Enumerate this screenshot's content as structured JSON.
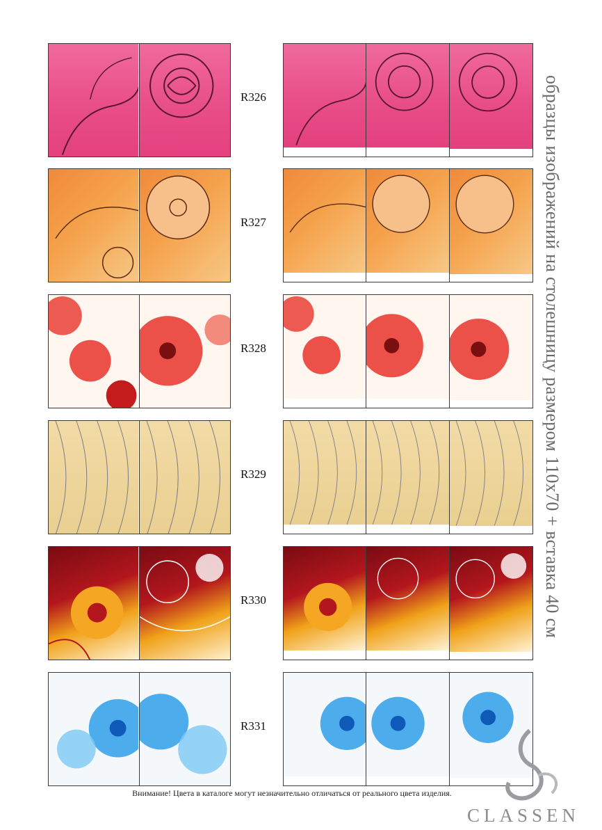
{
  "heading_vertical": "образцы изображений на столешницу размером 110х70 + вставка 40 см",
  "rows": [
    {
      "code": "R326",
      "theme": "pink-rose-sketch",
      "colors": {
        "primary": "#e84e88",
        "line": "#5a1630"
      }
    },
    {
      "code": "R327",
      "theme": "orange-flower-sketch",
      "colors": {
        "primary": "#f08a3a",
        "line": "#5a2a10"
      }
    },
    {
      "code": "R328",
      "theme": "red-poppies-on-white",
      "colors": {
        "primary": "#e8332b",
        "line": "#7a0f0f"
      }
    },
    {
      "code": "R329",
      "theme": "beige-leaf-pattern",
      "colors": {
        "primary": "#e9cf90",
        "line": "#7d7a88"
      }
    },
    {
      "code": "R330",
      "theme": "burgundy-orange-floral-ornament",
      "colors": {
        "primary": "#b3161d",
        "line": "#ffffff"
      }
    },
    {
      "code": "R331",
      "theme": "blue-flowers-on-white",
      "colors": {
        "primary": "#2f9fe8",
        "line": "#0f5ab8"
      }
    }
  ],
  "footer": {
    "warning": "Внимание! Цвета в каталоге могут незначительно отличаться от реального цвета изделия.",
    "brand": "CLASSEN"
  }
}
